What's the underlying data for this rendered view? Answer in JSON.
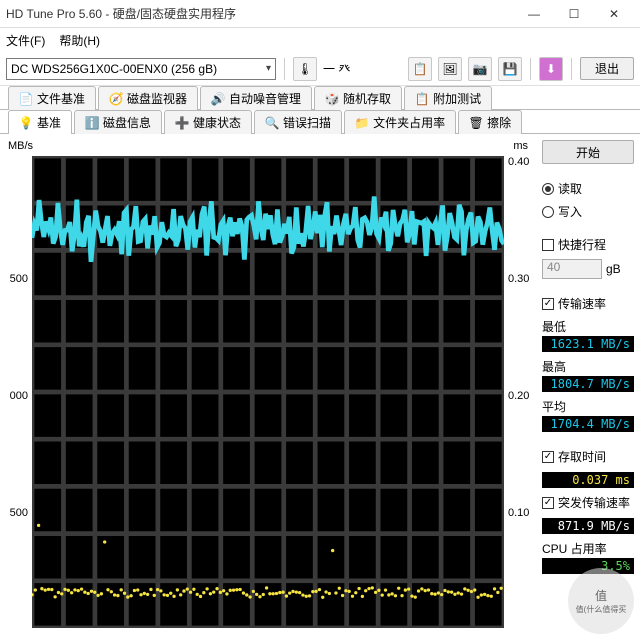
{
  "window": {
    "title": "HD Tune Pro 5.60 - 硬盘/固态硬盘实用程序"
  },
  "menu": {
    "file": "文件(F)",
    "help": "帮助(H)"
  },
  "toolbar": {
    "drive": "DC WDS256G1X0C-00ENX0 (256 gB)",
    "temp_label": "一 癶",
    "exit": "退出"
  },
  "tabs_row1": [
    {
      "icon": "📄",
      "label": "文件基准"
    },
    {
      "icon": "🧭",
      "label": "磁盘监视器"
    },
    {
      "icon": "🔊",
      "label": "自动噪音管理"
    },
    {
      "icon": "🎲",
      "label": "随机存取"
    },
    {
      "icon": "📋",
      "label": "附加测试"
    }
  ],
  "tabs_row2": [
    {
      "icon": "💡",
      "label": "基准",
      "active": true
    },
    {
      "icon": "ℹ️",
      "label": "磁盘信息"
    },
    {
      "icon": "➕",
      "label": "健康状态"
    },
    {
      "icon": "🔍",
      "label": "错误扫描"
    },
    {
      "icon": "📁",
      "label": "文件夹占用率"
    },
    {
      "icon": "🗑",
      "label": "擦除"
    }
  ],
  "chart": {
    "y_left_label": "MB/s",
    "y_right_label": "ms",
    "y_left_ticks": [
      {
        "v": "500",
        "p": 0.25
      },
      {
        "v": "000",
        "p": 0.5
      },
      {
        "v": "500",
        "p": 0.75
      }
    ],
    "y_right_ticks": [
      {
        "v": "0.40",
        "p": 0
      },
      {
        "v": "0.30",
        "p": 0.25
      },
      {
        "v": "0.20",
        "p": 0.5
      },
      {
        "v": "0.10",
        "p": 0.75
      }
    ],
    "cyan_base": 0.155,
    "cyan_amp": 0.025,
    "yellow_base": 0.925,
    "grid_cols": 15,
    "grid_rows": 10,
    "colors": {
      "bg": "#000000",
      "grid": "#3a3a3a",
      "line": "#3fd8e8",
      "dots": "#f5e342"
    }
  },
  "side": {
    "start": "开始",
    "read": "读取",
    "write": "写入",
    "short": "快捷行程",
    "short_val": "40",
    "short_unit": "gB",
    "rate": "传输速率",
    "min_l": "最低",
    "min_v": "1623.1 MB/s",
    "max_l": "最高",
    "max_v": "1804.7 MB/s",
    "avg_l": "平均",
    "avg_v": "1704.4 MB/s",
    "access": "存取时间",
    "access_v": "0.037 ms",
    "burst": "突发传输速率",
    "burst_v": "871.9 MB/s",
    "cpu": "CPU 占用率",
    "cpu_v": "3.5%"
  },
  "watermark": "值(什么值得买"
}
